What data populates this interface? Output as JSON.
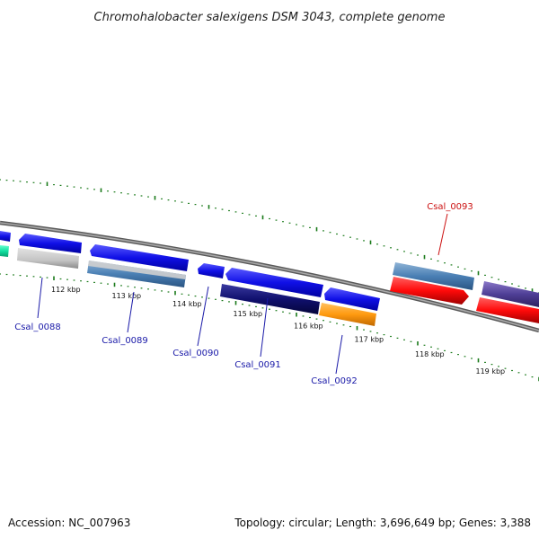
{
  "title": "Chromohalobacter salexigens DSM 3043, complete genome",
  "footer": {
    "accession": "Accession: NC_007963",
    "summary": "Topology: circular; Length: 3,696,649 bp; Genes: 3,388"
  },
  "colors": {
    "tick": "#1a7a1a",
    "backbone": "#7a7a7a",
    "label_default": "#1a1aa8",
    "label_highlight": "#cc1111"
  },
  "tick_labels": [
    "112 kbp",
    "113 kbp",
    "114 kbp",
    "115 kbp",
    "116 kbp",
    "117 kbp",
    "118 kbp",
    "119 kbp"
  ],
  "gene_labels": [
    {
      "name": "Csal_0088",
      "color": "#1a1aa8"
    },
    {
      "name": "Csal_0089",
      "color": "#1a1aa8"
    },
    {
      "name": "Csal_0090",
      "color": "#1a1aa8"
    },
    {
      "name": "Csal_0091",
      "color": "#1a1aa8"
    },
    {
      "name": "Csal_0092",
      "color": "#1a1aa8"
    },
    {
      "name": "Csal_0093",
      "color": "#cc1111"
    }
  ]
}
